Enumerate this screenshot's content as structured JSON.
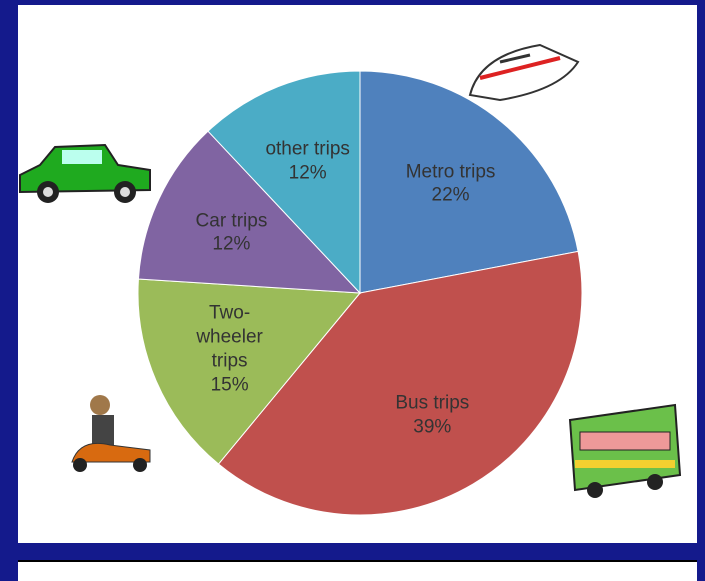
{
  "chart_data": {
    "type": "pie",
    "categories": [
      "Metro trips",
      "Bus trips",
      "Two-wheeler trips",
      "Car trips",
      "other trips"
    ],
    "values": [
      22,
      39,
      15,
      12,
      12
    ],
    "value_labels": [
      "22%",
      "39%",
      "15%",
      "12%",
      "12%"
    ],
    "colors": [
      "#4f81bd",
      "#c0504d",
      "#9bbb59",
      "#8064a2",
      "#4bacc6"
    ]
  }
}
